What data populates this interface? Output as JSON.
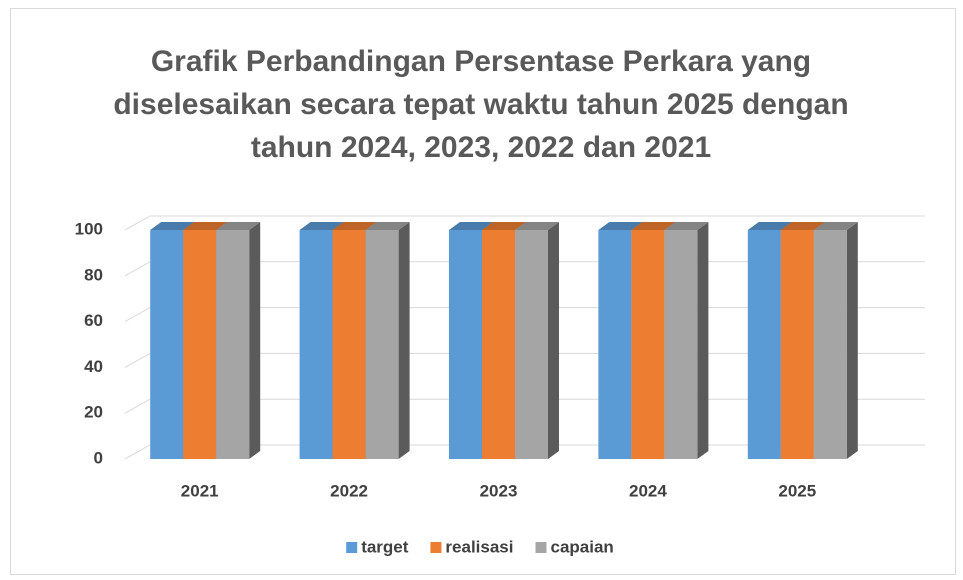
{
  "chart_data": {
    "type": "bar3d",
    "title": "Grafik  Perbandingan Persentase Perkara yang diselesaikan secara tepat waktu tahun 2025 dengan tahun 2024, 2023, 2022 dan 2021",
    "categories": [
      "2021",
      "2022",
      "2023",
      "2024",
      "2025"
    ],
    "series": [
      {
        "name": "target",
        "color": "#5b9bd5",
        "values": [
          100,
          100,
          100,
          100,
          100
        ]
      },
      {
        "name": "realisasi",
        "color": "#ed7d31",
        "values": [
          100,
          100,
          100,
          100,
          100
        ]
      },
      {
        "name": "capaian",
        "color": "#a5a5a5",
        "values": [
          100,
          100,
          100,
          100,
          100
        ]
      }
    ],
    "ylim": [
      0,
      100
    ],
    "yticks": [
      0,
      20,
      40,
      60,
      80,
      100
    ],
    "grid": true,
    "legend": "bottom"
  }
}
